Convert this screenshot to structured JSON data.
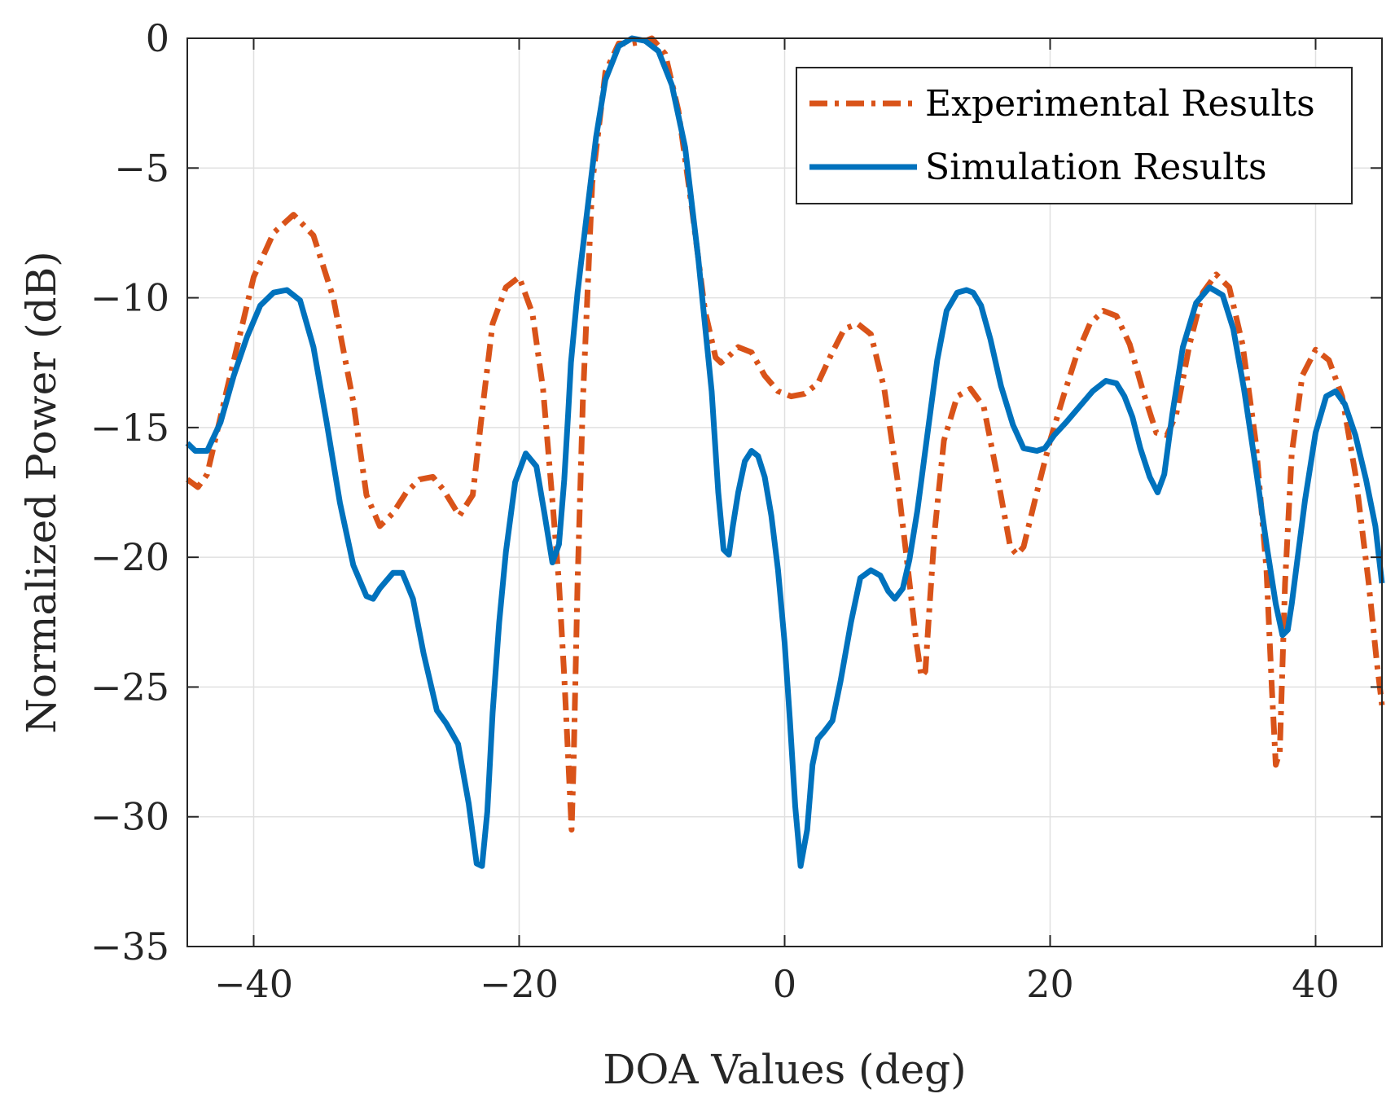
{
  "chart_data": {
    "type": "line",
    "title": "",
    "xlabel": "DOA Values (deg)",
    "ylabel": "Normalized Power (dB)",
    "xlim": [
      -45,
      45
    ],
    "ylim": [
      -35,
      0
    ],
    "xticks": [
      -40,
      -20,
      0,
      20,
      40
    ],
    "yticks": [
      0,
      -5,
      -10,
      -15,
      -20,
      -25,
      -30,
      -35
    ],
    "xtick_labels": [
      "−40",
      "−20",
      "0",
      "20",
      "40"
    ],
    "ytick_labels": [
      "0",
      "−5",
      "−10",
      "−15",
      "−20",
      "−25",
      "−30",
      "−35"
    ],
    "grid": true,
    "legend_position": "top-right",
    "series": [
      {
        "name": "Experimental Results",
        "style": "dash-dot",
        "color": "#D95319",
        "x": [
          -45,
          -44.2,
          -43.5,
          -42,
          -40,
          -38.5,
          -37,
          -35.5,
          -34,
          -32.5,
          -31.5,
          -30.5,
          -29.5,
          -28.5,
          -27.5,
          -26.5,
          -25.7,
          -24.5,
          -23.5,
          -22.7,
          -22,
          -21,
          -20,
          -19,
          -18.2,
          -17.5,
          -17,
          -16.6,
          -16.3,
          -16.05,
          -15.9,
          -15.6,
          -15.2,
          -14.5,
          -13.5,
          -12.5,
          -11.5,
          -10.5,
          -10,
          -9,
          -8,
          -7,
          -6,
          -5.2,
          -4.8,
          -4.3,
          -3.5,
          -2.5,
          -1.5,
          -0.5,
          0.5,
          1.5,
          2.5,
          3.5,
          4.5,
          5.5,
          6.5,
          7.5,
          8.5,
          9.3,
          9.9,
          10.3,
          10.6,
          10.9,
          11.3,
          12,
          13,
          14,
          15,
          16,
          17,
          17.5,
          18,
          19,
          20,
          21,
          22,
          23,
          24,
          25,
          26,
          27,
          28,
          28.8,
          29.5,
          30.5,
          31.5,
          32.5,
          33.5,
          34.5,
          35.5,
          36.3,
          36.7,
          37.0,
          37.3,
          37.7,
          38.2,
          39,
          40,
          41,
          42,
          43,
          44,
          44.6,
          45
        ],
        "y": [
          -17,
          -17.3,
          -16.8,
          -13.5,
          -9.2,
          -7.5,
          -6.8,
          -7.6,
          -10,
          -14,
          -17.6,
          -18.8,
          -18.3,
          -17.5,
          -17,
          -16.9,
          -17.4,
          -18.4,
          -17.6,
          -14,
          -11,
          -9.6,
          -9.2,
          -10.6,
          -13.5,
          -17.8,
          -21,
          -24.6,
          -27.8,
          -30.5,
          -28,
          -21,
          -14,
          -5.6,
          -1.3,
          -0.2,
          -0.2,
          -0.1,
          0,
          -0.6,
          -2.8,
          -6.5,
          -10.5,
          -12.3,
          -12.5,
          -12.3,
          -11.9,
          -12.1,
          -13.0,
          -13.6,
          -13.8,
          -13.7,
          -13.3,
          -12.2,
          -11.2,
          -11.0,
          -11.4,
          -13.5,
          -17.0,
          -20.5,
          -23.2,
          -24.6,
          -24.4,
          -22,
          -19,
          -15.5,
          -13.8,
          -13.5,
          -14.2,
          -16.8,
          -19.6,
          -19.9,
          -19.6,
          -17.5,
          -15.5,
          -13.8,
          -12.2,
          -11.0,
          -10.5,
          -10.7,
          -11.8,
          -13.6,
          -15.2,
          -15.3,
          -14.5,
          -11.8,
          -9.8,
          -9.1,
          -9.6,
          -11.8,
          -15.6,
          -20.5,
          -25,
          -28,
          -27.5,
          -21,
          -16,
          -13,
          -12,
          -12.4,
          -13.8,
          -16.8,
          -21,
          -24,
          -25.7
        ]
      },
      {
        "name": "Simulation Results",
        "style": "solid",
        "color": "#0072BD",
        "x": [
          -45,
          -44.4,
          -43.5,
          -42.5,
          -41.5,
          -40.5,
          -39.5,
          -38.5,
          -37.5,
          -36.5,
          -35.5,
          -34.5,
          -33.5,
          -32.5,
          -31.5,
          -31,
          -30.5,
          -29.5,
          -28.8,
          -28,
          -27.2,
          -26.2,
          -25.5,
          -24.6,
          -23.8,
          -23.2,
          -22.8,
          -22.4,
          -22.0,
          -21.5,
          -21,
          -20.3,
          -19.5,
          -18.7,
          -18.1,
          -17.5,
          -17.0,
          -16.6,
          -16.3,
          -16.1,
          -15.6,
          -15,
          -14.2,
          -13.5,
          -12.5,
          -11.5,
          -10.5,
          -9.5,
          -8.5,
          -7.5,
          -6.5,
          -5.5,
          -5.0,
          -4.6,
          -4.2,
          -3.9,
          -3.5,
          -3.0,
          -2.5,
          -2.0,
          -1.5,
          -1.0,
          -0.5,
          0,
          0.4,
          0.8,
          1.2,
          1.7,
          2.1,
          2.5,
          3.0,
          3.6,
          4.2,
          5.0,
          5.7,
          6.5,
          7.2,
          7.8,
          8.3,
          8.9,
          9.4,
          10,
          10.8,
          11.5,
          12.2,
          13,
          13.7,
          14.2,
          14.8,
          15.5,
          16.3,
          17.2,
          18,
          19,
          19.6,
          20.3,
          21.2,
          22.2,
          23.2,
          24.2,
          25,
          25.6,
          26.2,
          26.8,
          27.5,
          28.1,
          28.6,
          29.2,
          30,
          31,
          32,
          33,
          33.8,
          34.6,
          35.5,
          36.3,
          37,
          37.5,
          37.9,
          38.2,
          38.6,
          39.2,
          40,
          40.8,
          41.5,
          42.2,
          43,
          43.8,
          44.5,
          45
        ],
        "y": [
          -15.6,
          -15.9,
          -15.9,
          -14.8,
          -13,
          -11.5,
          -10.3,
          -9.8,
          -9.7,
          -10.1,
          -11.9,
          -14.8,
          -17.9,
          -20.3,
          -21.5,
          -21.6,
          -21.2,
          -20.6,
          -20.6,
          -21.6,
          -23.7,
          -25.9,
          -26.4,
          -27.2,
          -29.5,
          -31.8,
          -31.9,
          -29.8,
          -26,
          -22.5,
          -19.8,
          -17.1,
          -16.0,
          -16.5,
          -18.3,
          -20.2,
          -19.5,
          -17.0,
          -14.4,
          -12.5,
          -9.8,
          -7.2,
          -3.8,
          -1.6,
          -0.3,
          0,
          -0.1,
          -0.5,
          -1.8,
          -4.2,
          -8.5,
          -13.6,
          -17.5,
          -19.7,
          -19.9,
          -18.8,
          -17.5,
          -16.3,
          -15.9,
          -16.1,
          -16.9,
          -18.4,
          -20.5,
          -23.3,
          -26.3,
          -29.6,
          -31.9,
          -30.5,
          -28,
          -27.0,
          -26.7,
          -26.3,
          -24.8,
          -22.5,
          -20.8,
          -20.5,
          -20.7,
          -21.3,
          -21.6,
          -21.2,
          -20.1,
          -18.2,
          -15.1,
          -12.4,
          -10.5,
          -9.8,
          -9.7,
          -9.8,
          -10.3,
          -11.6,
          -13.4,
          -14.9,
          -15.8,
          -15.9,
          -15.8,
          -15.3,
          -14.8,
          -14.2,
          -13.6,
          -13.2,
          -13.3,
          -13.8,
          -14.6,
          -15.8,
          -16.9,
          -17.5,
          -16.8,
          -14.5,
          -11.9,
          -10.2,
          -9.6,
          -9.9,
          -11.2,
          -13.5,
          -16.6,
          -19.5,
          -21.8,
          -23.0,
          -22.8,
          -21.8,
          -20.2,
          -17.8,
          -15.2,
          -13.8,
          -13.6,
          -14.1,
          -15.3,
          -17.0,
          -18.8,
          -21
        ]
      }
    ]
  }
}
